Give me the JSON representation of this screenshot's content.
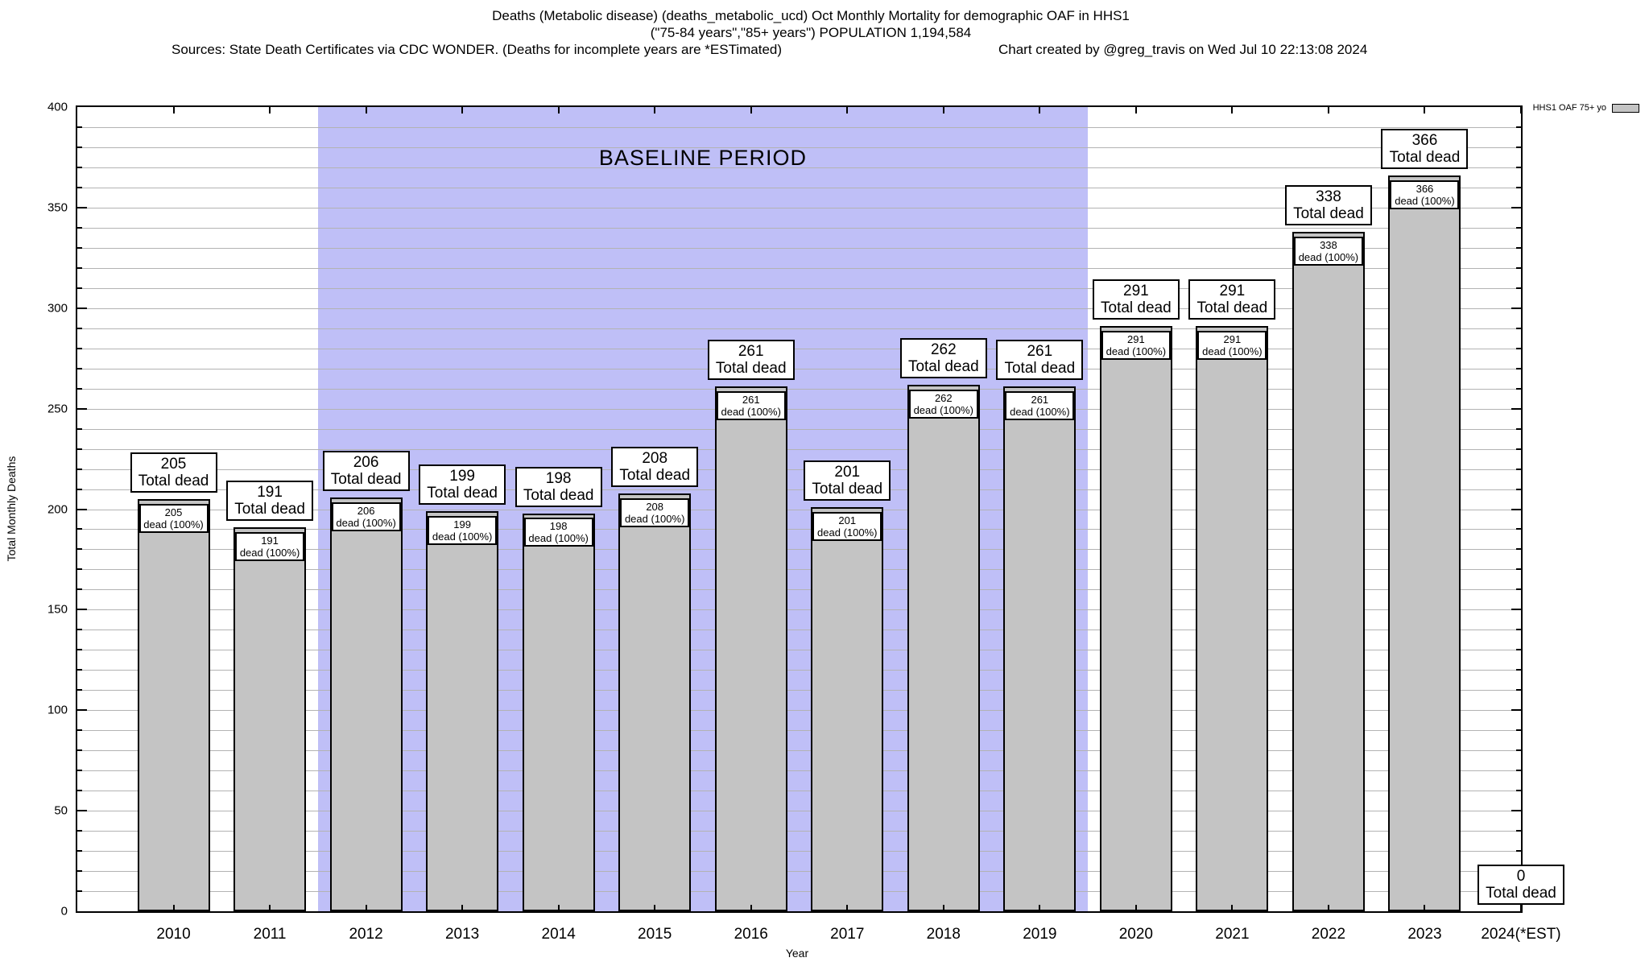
{
  "header": {
    "title_line1": "Deaths (Metabolic disease) (deaths_metabolic_ucd) Oct Monthly Mortality for demographic OAF in HHS1",
    "title_line2": "(\"75-84 years\",\"85+ years\") POPULATION 1,194,584",
    "sources": "Sources: State Death Certificates via CDC WONDER. (Deaths for incomplete years are *ESTimated)",
    "credit": "Chart created by @greg_travis on Wed Jul 10 22:13:08 2024"
  },
  "legend": {
    "label": "HHS1 OAF 75+ yo"
  },
  "chart_data": {
    "type": "bar",
    "title": "Deaths (Metabolic disease) Oct Monthly Mortality for demographic OAF in HHS1",
    "categories": [
      "2010",
      "2011",
      "2012",
      "2013",
      "2014",
      "2015",
      "2016",
      "2017",
      "2018",
      "2019",
      "2020",
      "2021",
      "2022",
      "2023",
      "2024(*EST)"
    ],
    "values": [
      205,
      191,
      206,
      199,
      198,
      208,
      261,
      201,
      262,
      261,
      291,
      291,
      338,
      366,
      0
    ],
    "series_name": "HHS1 OAF 75+ yo",
    "outer_label_line2": "Total dead",
    "inner_label_line2": "dead (100%)",
    "xlabel": "Year",
    "ylabel": "Total Monthly Deaths",
    "ylim": [
      0,
      400
    ],
    "ytick_step": 50,
    "minor_grid_step": 10,
    "grid": true,
    "legend_position": "top-right",
    "annotation": "BASELINE PERIOD",
    "baseline_range": [
      "2012",
      "2019"
    ],
    "colors": {
      "bar": "#c4c4c4",
      "baseline_region": "#bfbff7",
      "grid": "#b3b3b3",
      "border": "#000000"
    }
  }
}
